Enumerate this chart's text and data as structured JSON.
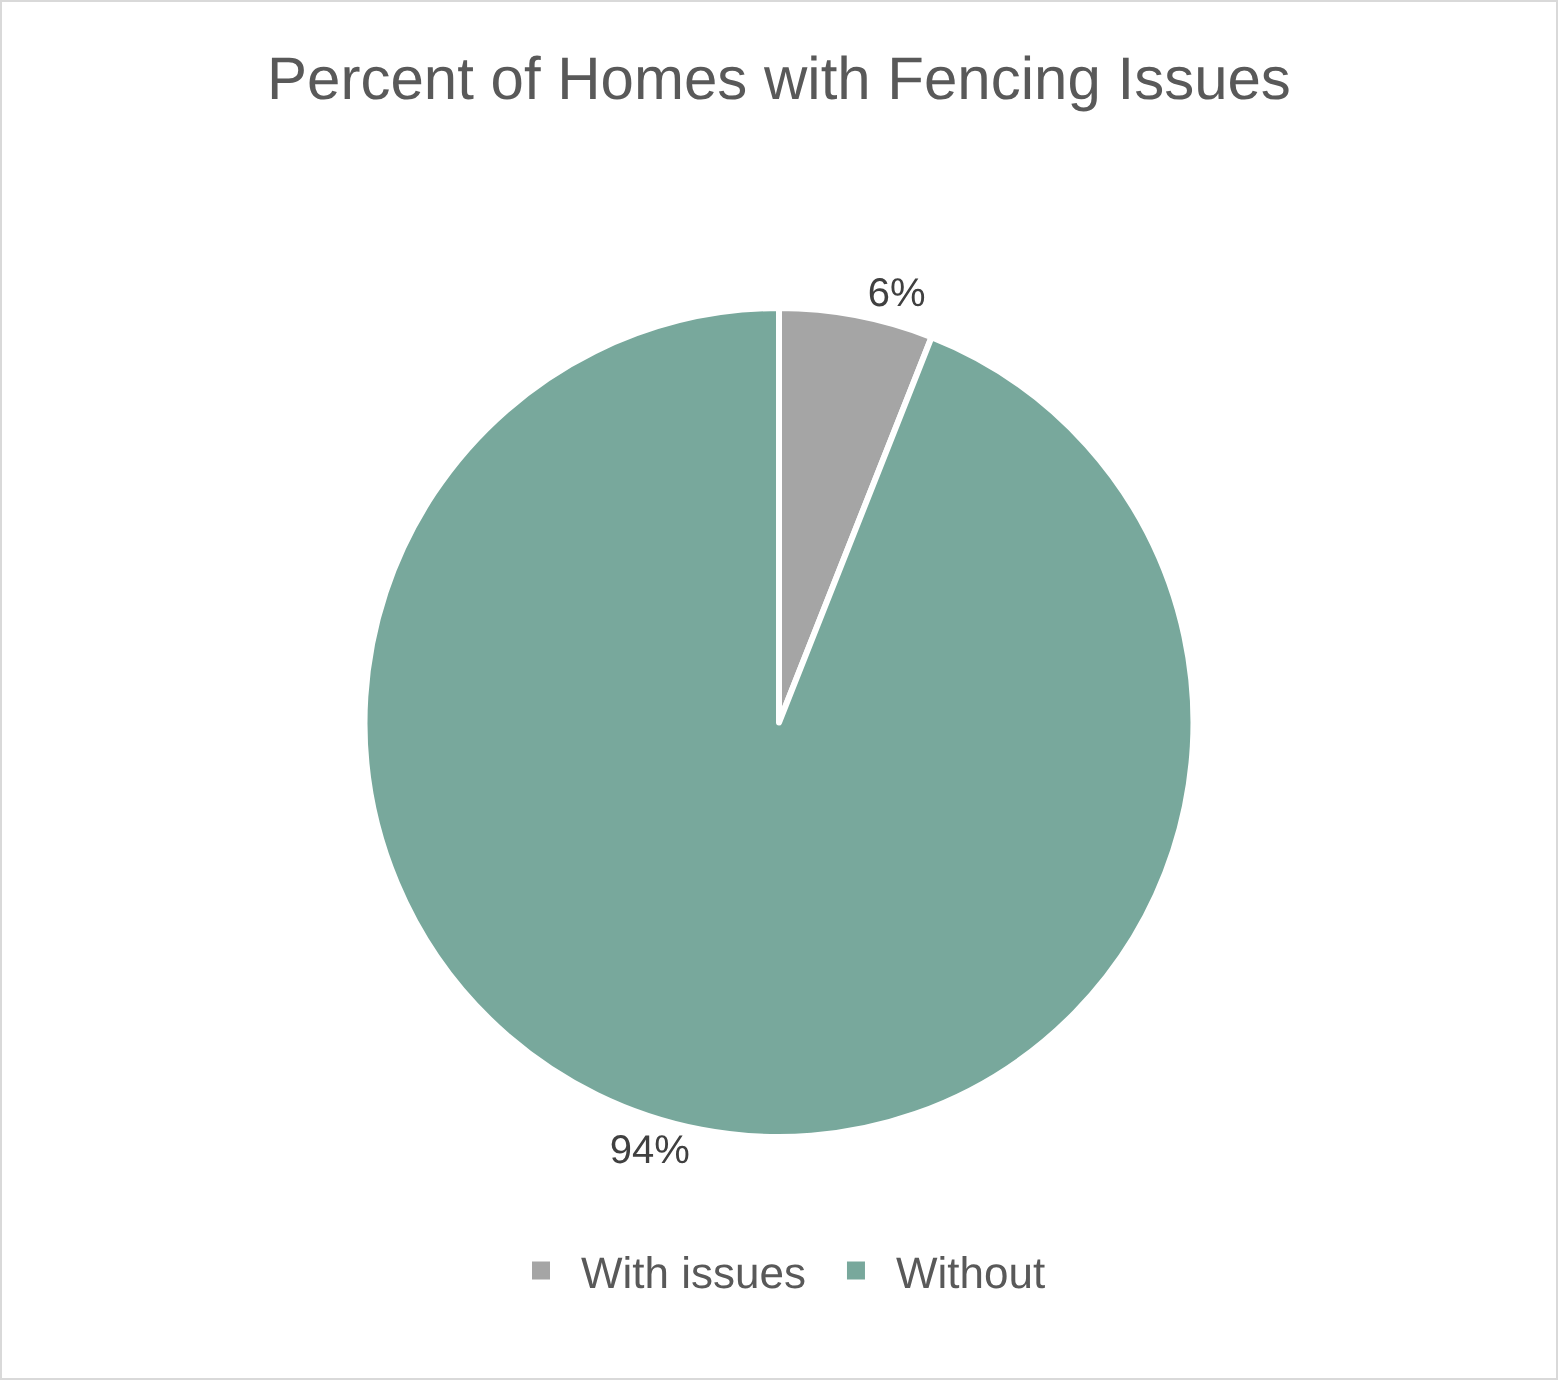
{
  "chart_data": {
    "type": "pie",
    "title": "Percent of Homes with Fencing Issues",
    "categories": [
      "With issues",
      "Without"
    ],
    "values": [
      6,
      94
    ],
    "colors": [
      "#a5a5a5",
      "#78a89c"
    ],
    "value_labels": [
      "6%",
      "94%"
    ],
    "legend": "bottom"
  }
}
